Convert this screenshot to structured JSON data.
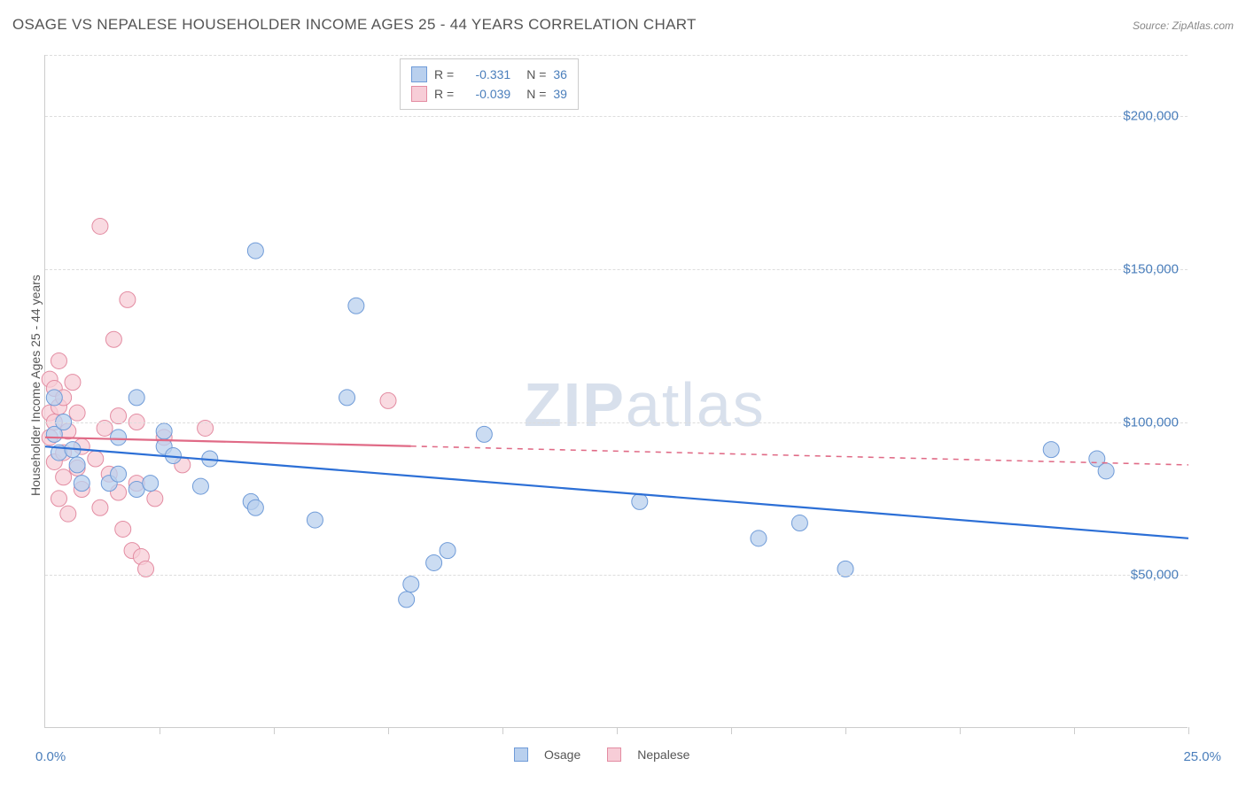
{
  "title": "OSAGE VS NEPALESE HOUSEHOLDER INCOME AGES 25 - 44 YEARS CORRELATION CHART",
  "source": "Source: ZipAtlas.com",
  "watermark": {
    "bold": "ZIP",
    "light": "atlas"
  },
  "chart": {
    "type": "scatter",
    "background_color": "#ffffff",
    "grid_color": "#dddddd",
    "axis_color": "#cccccc",
    "tick_label_color": "#4a7ebb",
    "axis_title_color": "#555555",
    "x": {
      "min": 0.0,
      "max": 25.0,
      "label_min": "0.0%",
      "label_max": "25.0%",
      "tick_positions_pct": [
        10,
        20,
        30,
        40,
        50,
        60,
        70,
        80,
        90,
        100
      ]
    },
    "y": {
      "title": "Householder Income Ages 25 - 44 years",
      "min": 0,
      "max": 220000,
      "gridlines": [
        50000,
        100000,
        150000,
        200000
      ],
      "tick_labels": [
        "$50,000",
        "$100,000",
        "$150,000",
        "$200,000"
      ]
    },
    "series": [
      {
        "name": "Osage",
        "color_fill": "#b9d0ee",
        "color_stroke": "#6f9bd8",
        "marker_radius": 9,
        "marker_opacity": 0.75,
        "line_color": "#2c6fd6",
        "line_width": 2.2,
        "regression": {
          "R": "-0.331",
          "N": "36",
          "y_at_xmin": 92000,
          "y_at_xmax": 62000
        },
        "points": [
          [
            0.2,
            96000
          ],
          [
            0.2,
            108000
          ],
          [
            0.3,
            90000
          ],
          [
            0.4,
            100000
          ],
          [
            0.6,
            91000
          ],
          [
            0.7,
            86000
          ],
          [
            0.8,
            80000
          ],
          [
            1.4,
            80000
          ],
          [
            1.6,
            83000
          ],
          [
            1.6,
            95000
          ],
          [
            2.0,
            78000
          ],
          [
            2.0,
            108000
          ],
          [
            2.3,
            80000
          ],
          [
            2.6,
            92000
          ],
          [
            2.6,
            97000
          ],
          [
            2.8,
            89000
          ],
          [
            3.4,
            79000
          ],
          [
            3.6,
            88000
          ],
          [
            4.5,
            74000
          ],
          [
            4.6,
            156000
          ],
          [
            4.6,
            72000
          ],
          [
            5.9,
            68000
          ],
          [
            6.6,
            108000
          ],
          [
            6.8,
            138000
          ],
          [
            7.9,
            42000
          ],
          [
            8.0,
            47000
          ],
          [
            8.5,
            54000
          ],
          [
            8.8,
            58000
          ],
          [
            9.6,
            96000
          ],
          [
            13.0,
            74000
          ],
          [
            15.6,
            62000
          ],
          [
            16.5,
            67000
          ],
          [
            17.5,
            52000
          ],
          [
            22.0,
            91000
          ],
          [
            23.0,
            88000
          ],
          [
            23.2,
            84000
          ]
        ]
      },
      {
        "name": "Nepalese",
        "color_fill": "#f7cdd7",
        "color_stroke": "#e38ca2",
        "marker_radius": 9,
        "marker_opacity": 0.75,
        "line_color": "#e06a86",
        "line_width": 2.2,
        "line_dash_after_x": 8.0,
        "regression": {
          "R": "-0.039",
          "N": "39",
          "y_at_xmin": 95000,
          "y_at_xmax": 86000
        },
        "points": [
          [
            0.1,
            95000
          ],
          [
            0.1,
            114000
          ],
          [
            0.1,
            103000
          ],
          [
            0.2,
            87000
          ],
          [
            0.2,
            100000
          ],
          [
            0.2,
            111000
          ],
          [
            0.3,
            105000
          ],
          [
            0.3,
            120000
          ],
          [
            0.3,
            75000
          ],
          [
            0.4,
            90000
          ],
          [
            0.4,
            82000
          ],
          [
            0.4,
            108000
          ],
          [
            0.5,
            97000
          ],
          [
            0.5,
            70000
          ],
          [
            0.6,
            113000
          ],
          [
            0.7,
            85000
          ],
          [
            0.7,
            103000
          ],
          [
            0.8,
            92000
          ],
          [
            0.8,
            78000
          ],
          [
            1.1,
            88000
          ],
          [
            1.2,
            164000
          ],
          [
            1.2,
            72000
          ],
          [
            1.3,
            98000
          ],
          [
            1.4,
            83000
          ],
          [
            1.5,
            127000
          ],
          [
            1.6,
            77000
          ],
          [
            1.6,
            102000
          ],
          [
            1.7,
            65000
          ],
          [
            1.8,
            140000
          ],
          [
            1.9,
            58000
          ],
          [
            2.0,
            100000
          ],
          [
            2.0,
            80000
          ],
          [
            2.1,
            56000
          ],
          [
            2.2,
            52000
          ],
          [
            2.4,
            75000
          ],
          [
            2.6,
            95000
          ],
          [
            3.0,
            86000
          ],
          [
            3.5,
            98000
          ],
          [
            7.5,
            107000
          ]
        ]
      }
    ],
    "legend_bottom": [
      {
        "swatch_fill": "#b9d0ee",
        "swatch_stroke": "#6f9bd8",
        "label": "Osage"
      },
      {
        "swatch_fill": "#f7cdd7",
        "swatch_stroke": "#e38ca2",
        "label": "Nepalese"
      }
    ]
  }
}
